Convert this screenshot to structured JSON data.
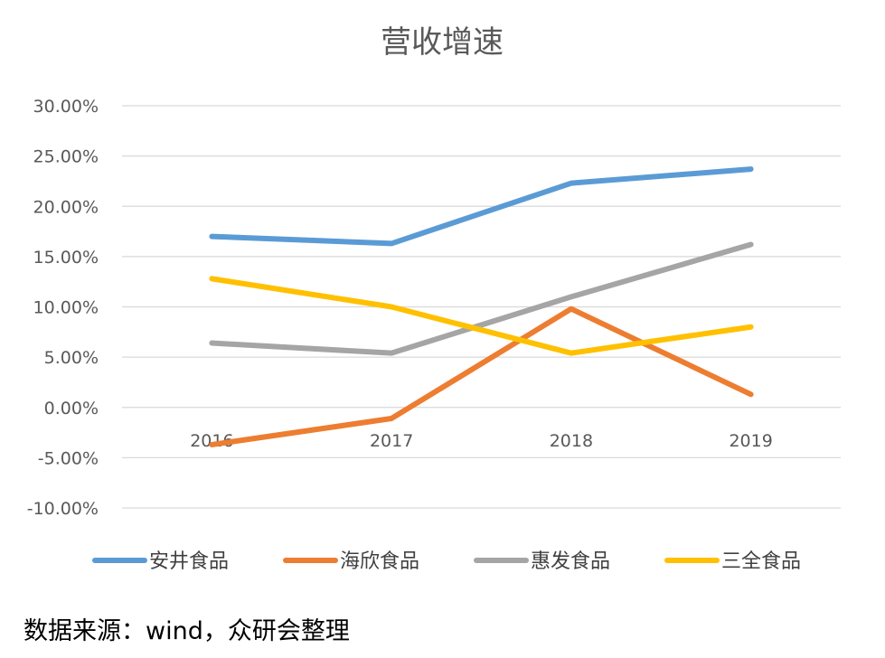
{
  "chart_data": {
    "type": "line",
    "title": "营收增速",
    "categories": [
      "2016",
      "2017",
      "2018",
      "2019"
    ],
    "ylim": [
      -10,
      30
    ],
    "yticks": [
      "-10.00%",
      "-5.00%",
      "0.00%",
      "5.00%",
      "10.00%",
      "15.00%",
      "20.00%",
      "25.00%",
      "30.00%"
    ],
    "ytick_values": [
      -10,
      -5,
      0,
      5,
      10,
      15,
      20,
      25,
      30
    ],
    "grid": true,
    "legend_position": "bottom",
    "series": [
      {
        "name": "安井食品",
        "color": "#5B9BD5",
        "values": [
          17.0,
          16.3,
          22.3,
          23.7
        ]
      },
      {
        "name": "海欣食品",
        "color": "#ED7D31",
        "values": [
          -3.7,
          -1.1,
          9.8,
          1.3
        ]
      },
      {
        "name": "惠发食品",
        "color": "#A5A5A5",
        "values": [
          6.4,
          5.4,
          11.0,
          16.2
        ]
      },
      {
        "name": "三全食品",
        "color": "#FFC000",
        "values": [
          12.8,
          10.0,
          5.4,
          8.0
        ]
      }
    ]
  },
  "source": "数据来源：wind，众研会整理"
}
